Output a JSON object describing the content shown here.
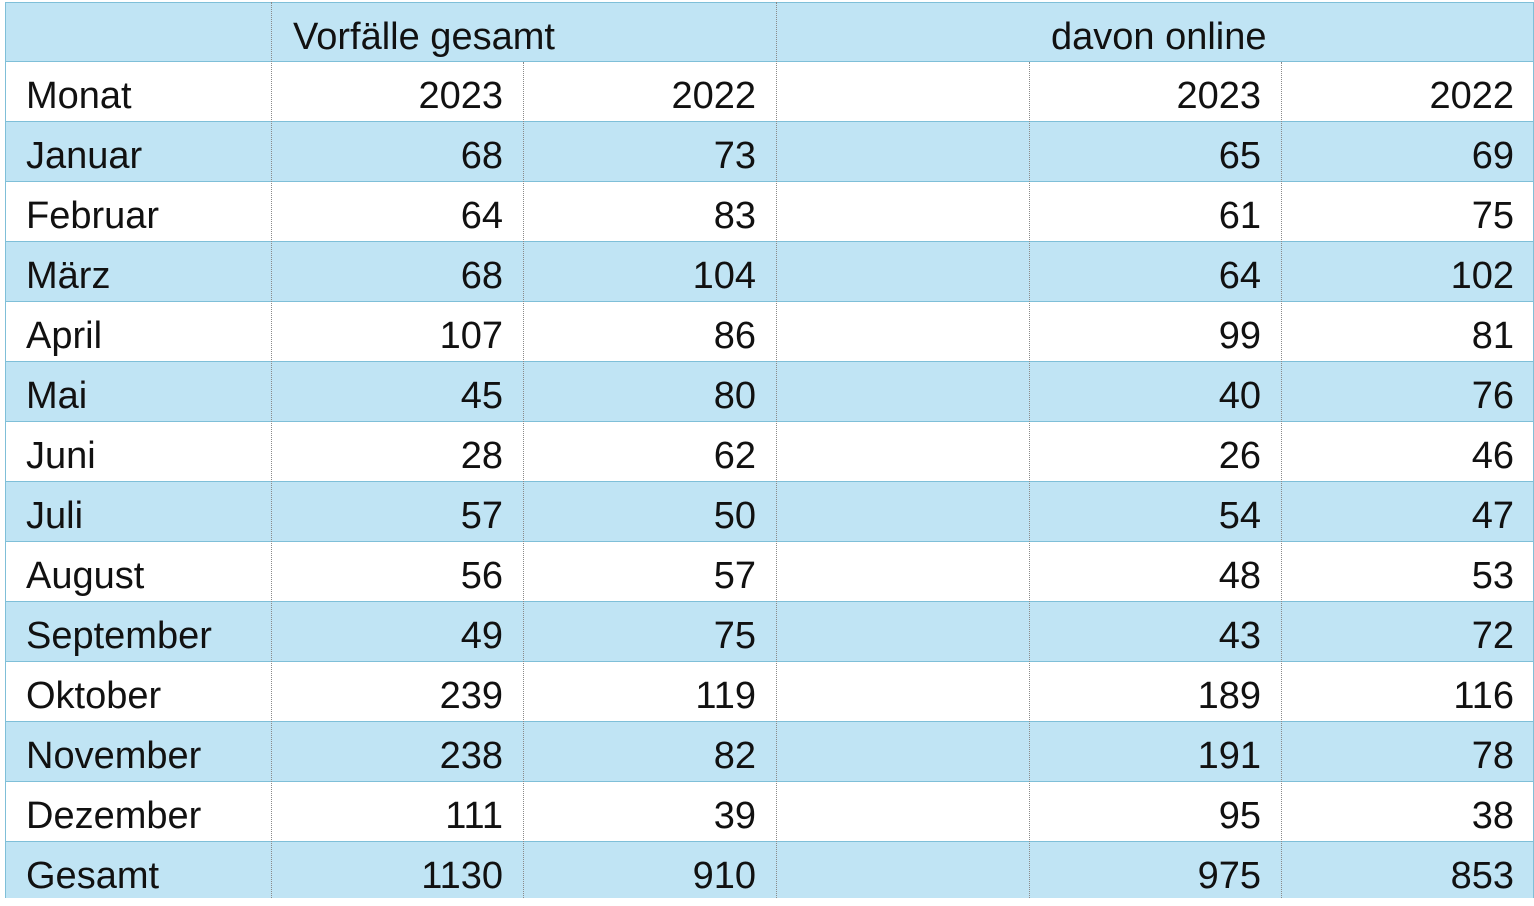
{
  "header": {
    "group_total": "Vorfälle gesamt",
    "group_online": "davon online",
    "month_label": "Monat",
    "total_2023": "2023",
    "total_2022": "2022",
    "online_2023": "2023",
    "online_2022": "2022"
  },
  "rows": [
    {
      "month": "Januar",
      "total_2023": "68",
      "total_2022": "73",
      "online_2023": "65",
      "online_2022": "69"
    },
    {
      "month": "Februar",
      "total_2023": "64",
      "total_2022": "83",
      "online_2023": "61",
      "online_2022": "75"
    },
    {
      "month": "März",
      "total_2023": "68",
      "total_2022": "104",
      "online_2023": "64",
      "online_2022": "102"
    },
    {
      "month": "April",
      "total_2023": "107",
      "total_2022": "86",
      "online_2023": "99",
      "online_2022": "81"
    },
    {
      "month": "Mai",
      "total_2023": "45",
      "total_2022": "80",
      "online_2023": "40",
      "online_2022": "76"
    },
    {
      "month": "Juni",
      "total_2023": "28",
      "total_2022": "62",
      "online_2023": "26",
      "online_2022": "46"
    },
    {
      "month": "Juli",
      "total_2023": "57",
      "total_2022": "50",
      "online_2023": "54",
      "online_2022": "47"
    },
    {
      "month": "August",
      "total_2023": "56",
      "total_2022": "57",
      "online_2023": "48",
      "online_2022": "53"
    },
    {
      "month": "September",
      "total_2023": "49",
      "total_2022": "75",
      "online_2023": "43",
      "online_2022": "72"
    },
    {
      "month": "Oktober",
      "total_2023": "239",
      "total_2022": "119",
      "online_2023": "189",
      "online_2022": "116"
    },
    {
      "month": "November",
      "total_2023": "238",
      "total_2022": "82",
      "online_2023": "191",
      "online_2022": "78"
    },
    {
      "month": "Dezember",
      "total_2023": "111",
      "total_2022": "39",
      "online_2023": "95",
      "online_2022": "38"
    }
  ],
  "total_row": {
    "label": "Gesamt",
    "total_2023": "1130",
    "total_2022": "910",
    "online_2023": "975",
    "online_2022": "853"
  },
  "colors": {
    "band": "#c0e4f4",
    "grid": "#7fbfd8"
  }
}
